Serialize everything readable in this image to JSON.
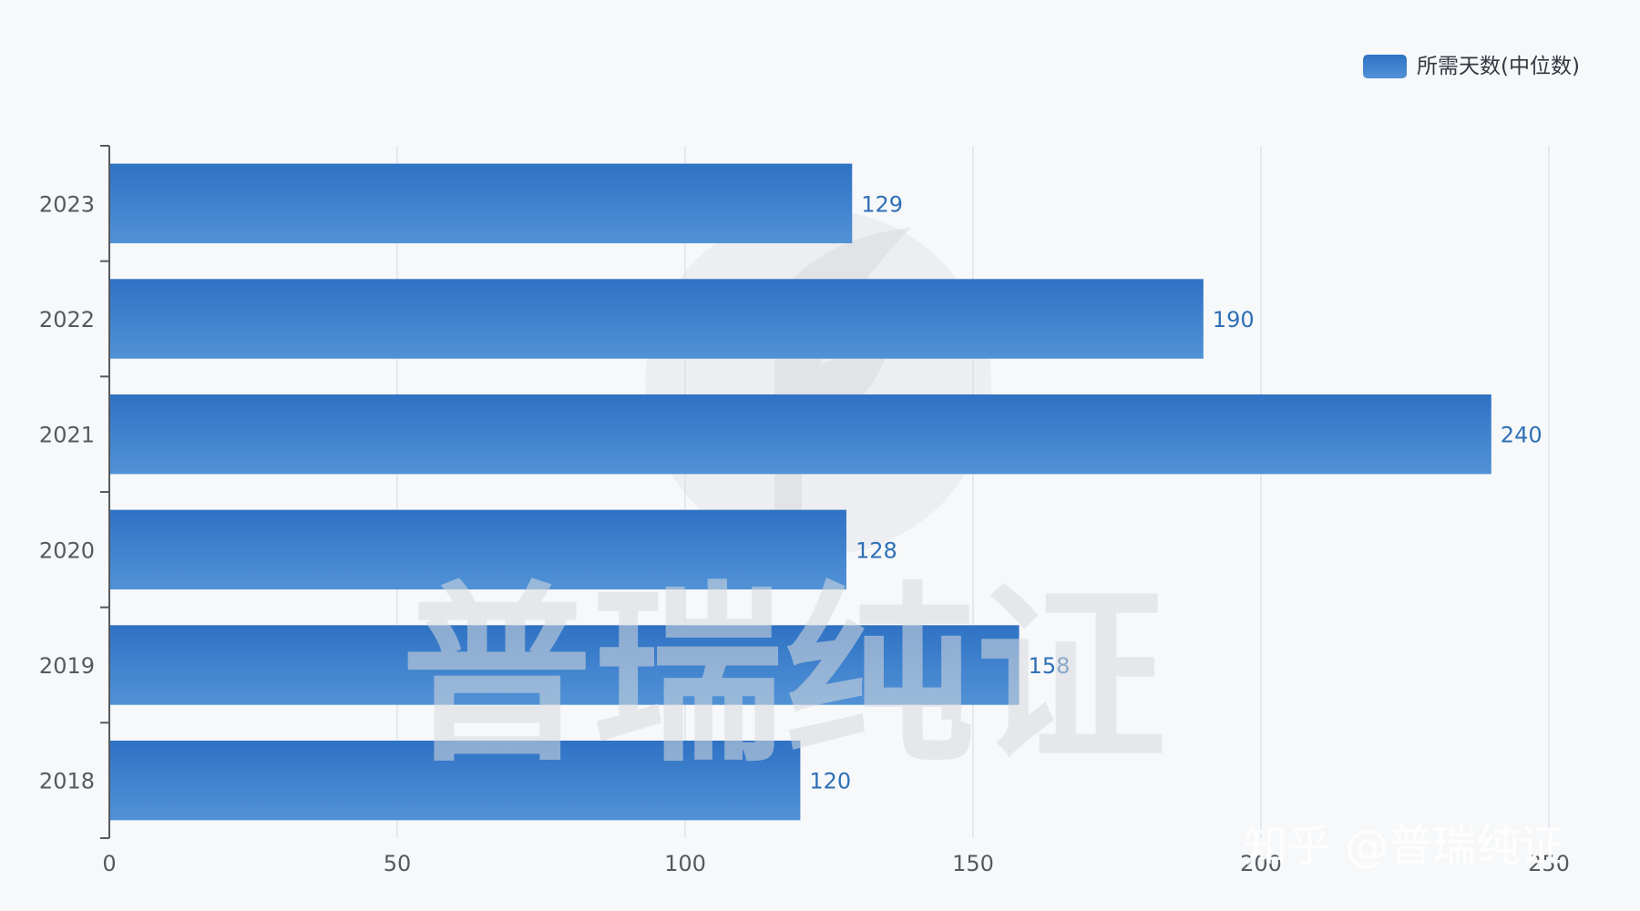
{
  "chart_data": {
    "type": "bar",
    "orientation": "horizontal",
    "categories": [
      "2023",
      "2022",
      "2021",
      "2020",
      "2019",
      "2018"
    ],
    "series": [
      {
        "name": "所需天数(中位数)",
        "values": [
          129,
          190,
          240,
          128,
          158,
          120
        ]
      }
    ],
    "xlim": [
      0,
      250
    ],
    "xticks": [
      0,
      50,
      100,
      150,
      200,
      250
    ],
    "grid": true,
    "legend_position": "top-right",
    "colors": {
      "bar_top": "#2f72c4",
      "bar_bottom": "#5192d6",
      "label": "#2f6fb5",
      "grid": "#dde3ee",
      "axis": "#555a60"
    }
  },
  "watermark": {
    "text": "普瑞纯证",
    "credit": "知乎 @普瑞纯证"
  }
}
